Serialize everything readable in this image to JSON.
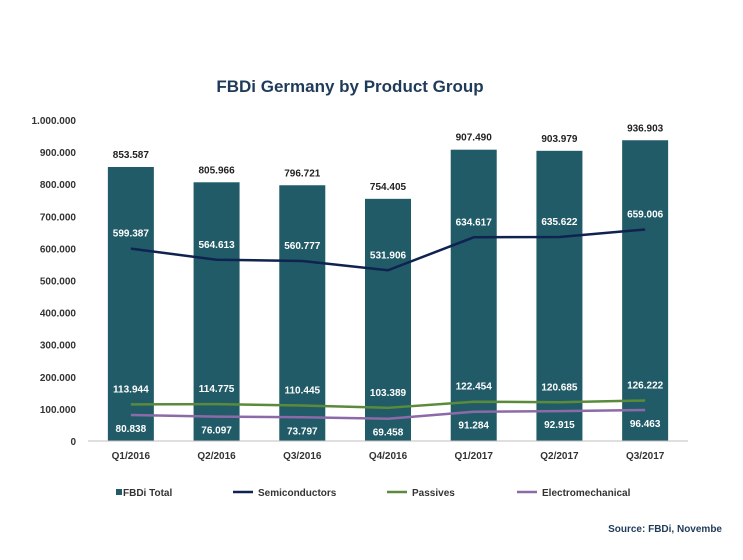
{
  "chart_data": {
    "type": "bar",
    "title": "FBDi Germany by Product Group",
    "categories": [
      "Q1/2016",
      "Q2/2016",
      "Q3/2016",
      "Q4/2016",
      "Q1/2017",
      "Q2/2017",
      "Q3/2017"
    ],
    "ylim": [
      0,
      1000000
    ],
    "yticks": [
      0,
      100000,
      200000,
      300000,
      400000,
      500000,
      600000,
      700000,
      800000,
      900000,
      1000000
    ],
    "ytick_labels": [
      "0",
      "100.000",
      "200.000",
      "300.000",
      "400.000",
      "500.000",
      "600.000",
      "700.000",
      "800.000",
      "900.000",
      "1.000.000"
    ],
    "legend_position": "bottom",
    "grid": false,
    "series": [
      {
        "name": "FBDi Total",
        "kind": "bar",
        "color": "#215b68",
        "values": [
          853587,
          805966,
          796721,
          754405,
          907490,
          903979,
          936903
        ],
        "labels": [
          "853.587",
          "805.966",
          "796.721",
          "754.405",
          "907.490",
          "903.979",
          "936.903"
        ]
      },
      {
        "name": "Semiconductors",
        "kind": "line",
        "color": "#0f2250",
        "values": [
          599387,
          564613,
          560777,
          531906,
          634617,
          635622,
          659006
        ],
        "labels": [
          "599.387",
          "564.613",
          "560.777",
          "531.906",
          "634.617",
          "635.622",
          "659.006"
        ]
      },
      {
        "name": "Passives",
        "kind": "line",
        "color": "#5a8a3a",
        "values": [
          113944,
          114775,
          110445,
          103389,
          122454,
          120685,
          126222
        ],
        "labels": [
          "113.944",
          "114.775",
          "110.445",
          "103.389",
          "122.454",
          "120.685",
          "126.222"
        ]
      },
      {
        "name": "Electromechanical",
        "kind": "line",
        "color": "#8c6aa8",
        "values": [
          80838,
          76097,
          73797,
          69458,
          91284,
          92915,
          96463
        ],
        "labels": [
          "80.838",
          "76.097",
          "73.797",
          "69.458",
          "91.284",
          "92.915",
          "96.463"
        ]
      }
    ],
    "source": "Source: FBDi, Novembe"
  }
}
